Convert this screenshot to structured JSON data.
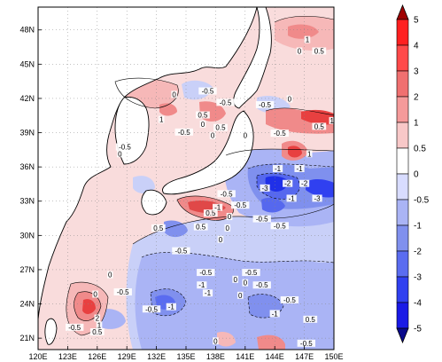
{
  "map": {
    "lon_range": [
      120,
      150
    ],
    "lat_range": [
      20,
      50
    ],
    "x_ticks": [
      "120E",
      "123E",
      "126E",
      "129E",
      "132E",
      "135E",
      "138E",
      "141E",
      "144E",
      "147E",
      "150E"
    ],
    "x_tick_values": [
      120,
      123,
      126,
      129,
      132,
      135,
      138,
      141,
      144,
      147,
      150
    ],
    "y_ticks": [
      "21N",
      "24N",
      "27N",
      "30N",
      "33N",
      "36N",
      "39N",
      "42N",
      "45N",
      "48N"
    ],
    "y_tick_values": [
      21,
      24,
      27,
      30,
      33,
      36,
      39,
      42,
      45,
      48
    ],
    "grid": true,
    "land_color": "#ffffff",
    "coastline_color": "#000000"
  },
  "colorbar": {
    "orientation": "vertical",
    "placement": "right",
    "labels": [
      "5",
      "4",
      "3",
      "2",
      "1",
      "0.5",
      "0",
      "-0.5",
      "-1",
      "-2",
      "-3",
      "-4",
      "-5"
    ],
    "colors": [
      "#ff2020",
      "#ff4a4a",
      "#f07070",
      "#f59a9a",
      "#f8c8c8",
      "#ffffff",
      "#d8dcff",
      "#aab4f5",
      "#8090ee",
      "#5a6cf0",
      "#3040f0",
      "#1a1ae6"
    ],
    "top_arrow_color": "#a00000",
    "bottom_arrow_color": "#0a0a8c"
  },
  "contour_labels": [
    {
      "text": "1",
      "lon": 147.3,
      "lat": 47.0
    },
    {
      "text": "0.5",
      "lon": 148.5,
      "lat": 46.0
    },
    {
      "text": "0",
      "lon": 146.5,
      "lat": 46.0
    },
    {
      "text": "-0.5",
      "lon": 137.2,
      "lat": 42.5
    },
    {
      "text": "0",
      "lon": 133.8,
      "lat": 42.2
    },
    {
      "text": "-0.5",
      "lon": 139.0,
      "lat": 41.5
    },
    {
      "text": "0",
      "lon": 145.5,
      "lat": 41.8
    },
    {
      "text": "-0.5",
      "lon": 143.0,
      "lat": 41.3
    },
    {
      "text": "0.5",
      "lon": 136.7,
      "lat": 40.4
    },
    {
      "text": "1",
      "lon": 132.5,
      "lat": 40.0
    },
    {
      "text": "0",
      "lon": 136.7,
      "lat": 39.6
    },
    {
      "text": "0.5",
      "lon": 138.5,
      "lat": 39.3
    },
    {
      "text": "-0.5",
      "lon": 134.8,
      "lat": 38.9
    },
    {
      "text": "-0.5",
      "lon": 144.5,
      "lat": 38.8
    },
    {
      "text": "1",
      "lon": 149.8,
      "lat": 39.9
    },
    {
      "text": "0.5",
      "lon": 148.5,
      "lat": 39.4
    },
    {
      "text": "0",
      "lon": 137.7,
      "lat": 38.6
    },
    {
      "text": "0",
      "lon": 141.0,
      "lat": 38.6
    },
    {
      "text": "-0.5",
      "lon": 128.8,
      "lat": 37.6
    },
    {
      "text": "0",
      "lon": 128.3,
      "lat": 37.0
    },
    {
      "text": "1",
      "lon": 147.5,
      "lat": 37.0
    },
    {
      "text": "-1",
      "lon": 144.3,
      "lat": 35.7
    },
    {
      "text": "-1",
      "lon": 146.5,
      "lat": 35.7
    },
    {
      "text": "-2",
      "lon": 145.3,
      "lat": 34.4
    },
    {
      "text": "-2",
      "lon": 147.0,
      "lat": 34.4
    },
    {
      "text": "-3",
      "lon": 143.0,
      "lat": 34.0
    },
    {
      "text": "-3",
      "lon": 148.3,
      "lat": 33.1
    },
    {
      "text": "-1",
      "lon": 145.7,
      "lat": 33.1
    },
    {
      "text": "-0.5",
      "lon": 139.1,
      "lat": 33.5
    },
    {
      "text": "-0.5",
      "lon": 140.5,
      "lat": 32.5
    },
    {
      "text": "0.5",
      "lon": 137.5,
      "lat": 31.8
    },
    {
      "text": "0",
      "lon": 139.4,
      "lat": 31.5
    },
    {
      "text": "-1",
      "lon": 138.2,
      "lat": 32.3
    },
    {
      "text": "-0.5",
      "lon": 142.7,
      "lat": 31.3
    },
    {
      "text": "0",
      "lon": 139.2,
      "lat": 30.5
    },
    {
      "text": "-0.5",
      "lon": 144.5,
      "lat": 30.7
    },
    {
      "text": "0.5",
      "lon": 136.5,
      "lat": 30.6
    },
    {
      "text": "0.5",
      "lon": 132.2,
      "lat": 30.5
    },
    {
      "text": "-0.5",
      "lon": 134.5,
      "lat": 28.5
    },
    {
      "text": "0",
      "lon": 138.5,
      "lat": 29.5
    },
    {
      "text": "-0.5",
      "lon": 137.0,
      "lat": 26.6
    },
    {
      "text": "-0.5",
      "lon": 141.6,
      "lat": 26.6
    },
    {
      "text": "0",
      "lon": 140.0,
      "lat": 26.0
    },
    {
      "text": "0",
      "lon": 127.3,
      "lat": 26.4
    },
    {
      "text": "0",
      "lon": 141.0,
      "lat": 25.7
    },
    {
      "text": "-1",
      "lon": 136.6,
      "lat": 25.5
    },
    {
      "text": "-0.5",
      "lon": 142.7,
      "lat": 25.5
    },
    {
      "text": "-1",
      "lon": 137.2,
      "lat": 24.8
    },
    {
      "text": "0",
      "lon": 125.8,
      "lat": 24.7
    },
    {
      "text": "-0.5",
      "lon": 128.6,
      "lat": 24.9
    },
    {
      "text": "0",
      "lon": 140.5,
      "lat": 24.6
    },
    {
      "text": "-0.5",
      "lon": 145.5,
      "lat": 24.2
    },
    {
      "text": "-1",
      "lon": 133.5,
      "lat": 23.6
    },
    {
      "text": "-0.5",
      "lon": 131.5,
      "lat": 23.4
    },
    {
      "text": "-1",
      "lon": 144.0,
      "lat": 23.0
    },
    {
      "text": "2",
      "lon": 126.0,
      "lat": 22.6
    },
    {
      "text": "1",
      "lon": 126.2,
      "lat": 22.0
    },
    {
      "text": "0.5",
      "lon": 126.0,
      "lat": 21.4
    },
    {
      "text": "-0.5",
      "lon": 123.7,
      "lat": 21.8
    },
    {
      "text": "0.5",
      "lon": 147.6,
      "lat": 22.5
    },
    {
      "text": "-0.5",
      "lon": 147.2,
      "lat": 20.4
    },
    {
      "text": "0",
      "lon": 138.0,
      "lat": 20.6
    }
  ]
}
